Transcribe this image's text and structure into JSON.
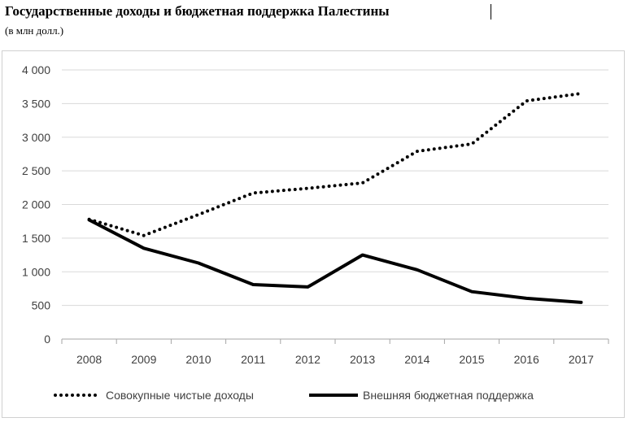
{
  "title": "Государственные доходы и бюджетная поддержка Палестины",
  "subtitle": "(в млн долл.)",
  "chart_data": {
    "type": "line",
    "title": "Государственные доходы и бюджетная поддержка Палестины",
    "subtitle": "(в млн долл.)",
    "x": [
      "2008",
      "2009",
      "2010",
      "2011",
      "2012",
      "2013",
      "2014",
      "2015",
      "2016",
      "2017"
    ],
    "ylim": [
      0,
      4000
    ],
    "yticks": [
      0,
      500,
      1000,
      1500,
      2000,
      2500,
      3000,
      3500,
      4000
    ],
    "ytick_labels": [
      "0",
      "500",
      "1 000",
      "1 500",
      "2 000",
      "2 500",
      "3 000",
      "3 500",
      "4 000"
    ],
    "grid": true,
    "legend_position": "bottom",
    "series": [
      {
        "name": "Совокупные чистые доходы",
        "style": "dotted",
        "color": "#000000",
        "values": [
          1780,
          1540,
          1850,
          2170,
          2240,
          2320,
          2790,
          2900,
          3540,
          3650
        ]
      },
      {
        "name": "Внешняя бюджетная поддержка",
        "style": "solid",
        "color": "#000000",
        "values": [
          1770,
          1350,
          1130,
          810,
          775,
          1250,
          1030,
          705,
          605,
          545
        ]
      }
    ]
  }
}
